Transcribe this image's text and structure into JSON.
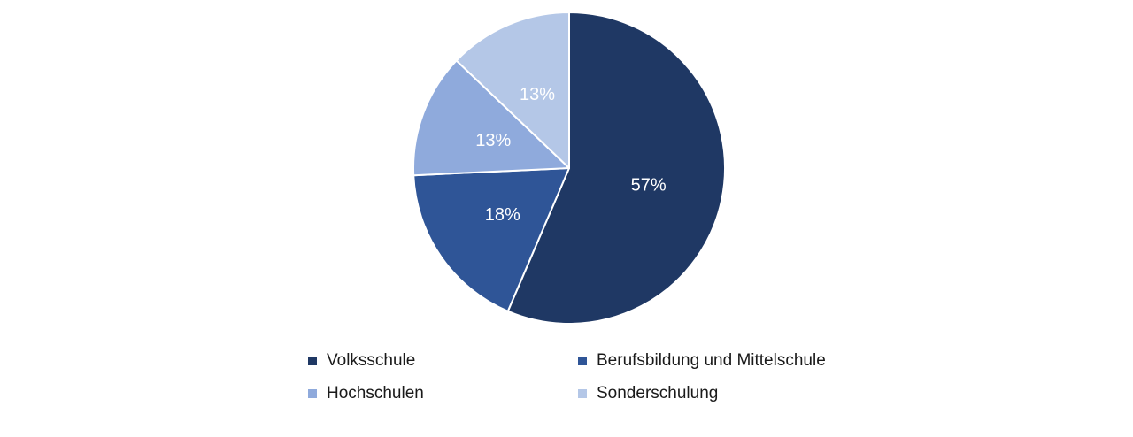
{
  "chart_data": {
    "type": "pie",
    "title": "",
    "categories": [
      "Volksschule",
      "Berufsbildung und Mittelschule",
      "Hochschulen",
      "Sonderschulung"
    ],
    "values": [
      57,
      18,
      13,
      13
    ],
    "data_labels": [
      "57%",
      "18%",
      "13%",
      "13%"
    ],
    "colors": [
      "#1F3864",
      "#2F5597",
      "#8FAADC",
      "#B4C7E7"
    ],
    "label_color": "#FFFFFF",
    "slice_border_color": "#FFFFFF",
    "start_angle_deg": 0,
    "direction": "clockwise",
    "legend_position": "bottom",
    "legend_rows": 2,
    "legend_columns": 2
  }
}
